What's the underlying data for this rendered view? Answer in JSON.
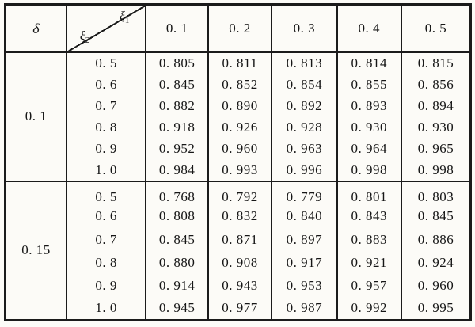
{
  "table": {
    "corner": {
      "delta_symbol": "δ",
      "xi1_base": "ξ",
      "xi1_sub": "1",
      "xi2_base": "ξ",
      "xi2_sub": "2"
    },
    "col_headers": [
      "0. 1",
      "0. 2",
      "0. 3",
      "0. 4",
      "0. 5"
    ],
    "groups": [
      {
        "delta": "0. 1",
        "rows": [
          {
            "xi2": "0. 5",
            "values": [
              "0. 805",
              "0. 811",
              "0. 813",
              "0. 814",
              "0. 815"
            ]
          },
          {
            "xi2": "0. 6",
            "values": [
              "0. 845",
              "0. 852",
              "0. 854",
              "0. 855",
              "0. 856"
            ]
          },
          {
            "xi2": "0. 7",
            "values": [
              "0. 882",
              "0. 890",
              "0. 892",
              "0. 893",
              "0. 894"
            ]
          },
          {
            "xi2": "0. 8",
            "values": [
              "0. 918",
              "0. 926",
              "0. 928",
              "0. 930",
              "0. 930"
            ]
          },
          {
            "xi2": "0. 9",
            "values": [
              "0. 952",
              "0. 960",
              "0. 963",
              "0. 964",
              "0. 965"
            ]
          },
          {
            "xi2": "1. 0",
            "values": [
              "0. 984",
              "0. 993",
              "0. 996",
              "0. 998",
              "0. 998"
            ]
          }
        ]
      },
      {
        "delta": "0. 15",
        "rows": [
          {
            "xi2": "0. 5",
            "values": [
              "0. 768",
              "0. 792",
              "0. 779",
              "0. 801",
              "0. 803"
            ]
          },
          {
            "xi2": "0. 6",
            "values": [
              "0. 808",
              "0. 832",
              "0. 840",
              "0. 843",
              "0. 845"
            ]
          },
          {
            "xi2": "0. 7",
            "values": [
              "0. 845",
              "0. 871",
              "0. 897",
              "0. 883",
              "0. 886"
            ]
          },
          {
            "xi2": "0. 8",
            "values": [
              "0. 880",
              "0. 908",
              "0. 917",
              "0. 921",
              "0. 924"
            ]
          },
          {
            "xi2": "0. 9",
            "values": [
              "0. 914",
              "0. 943",
              "0. 953",
              "0. 957",
              "0. 960"
            ]
          },
          {
            "xi2": "1. 0",
            "values": [
              "0. 945",
              "0. 977",
              "0. 987",
              "0. 992",
              "0. 995"
            ]
          }
        ]
      }
    ]
  },
  "chart_data": {
    "type": "table",
    "title": "",
    "group_variable": "δ",
    "col_variable": "ξ1",
    "row_variable": "ξ2",
    "xi1_values": [
      0.1,
      0.2,
      0.3,
      0.4,
      0.5
    ],
    "xi2_values": [
      0.5,
      0.6,
      0.7,
      0.8,
      0.9,
      1.0
    ],
    "groups": [
      {
        "delta": 0.1,
        "values": [
          [
            0.805,
            0.811,
            0.813,
            0.814,
            0.815
          ],
          [
            0.845,
            0.852,
            0.854,
            0.855,
            0.856
          ],
          [
            0.882,
            0.89,
            0.892,
            0.893,
            0.894
          ],
          [
            0.918,
            0.926,
            0.928,
            0.93,
            0.93
          ],
          [
            0.952,
            0.96,
            0.963,
            0.964,
            0.965
          ],
          [
            0.984,
            0.993,
            0.996,
            0.998,
            0.998
          ]
        ]
      },
      {
        "delta": 0.15,
        "values": [
          [
            0.768,
            0.792,
            0.779,
            0.801,
            0.803
          ],
          [
            0.808,
            0.832,
            0.84,
            0.843,
            0.845
          ],
          [
            0.845,
            0.871,
            0.897,
            0.883,
            0.886
          ],
          [
            0.88,
            0.908,
            0.917,
            0.921,
            0.924
          ],
          [
            0.914,
            0.943,
            0.953,
            0.957,
            0.96
          ],
          [
            0.945,
            0.977,
            0.987,
            0.992,
            0.995
          ]
        ]
      }
    ]
  }
}
